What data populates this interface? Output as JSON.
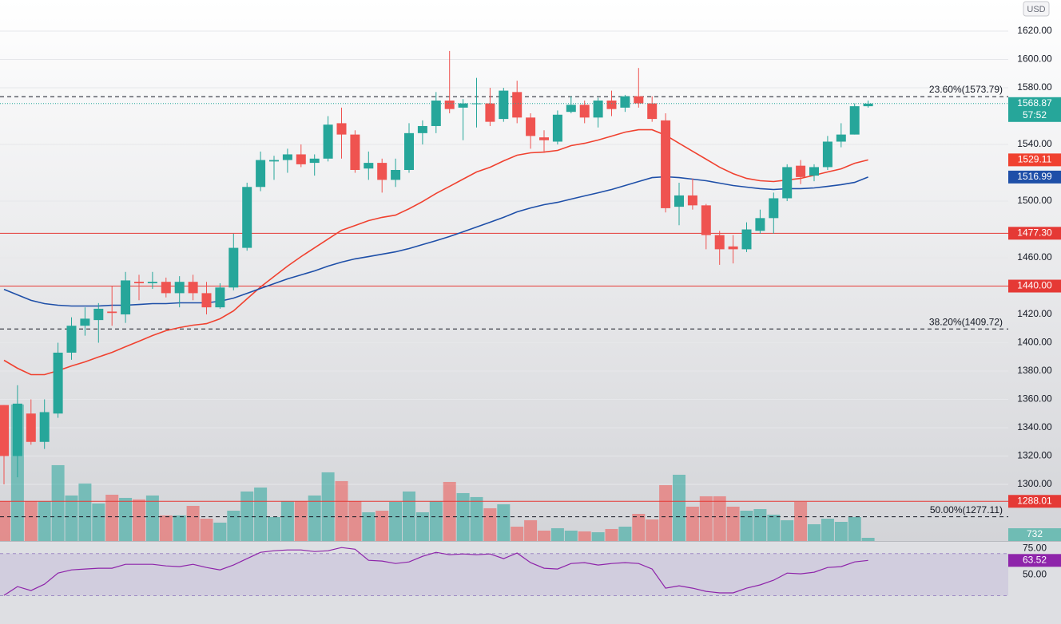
{
  "chart_data": {
    "type": "candlestick",
    "currency": "USD",
    "ylim": [
      1260,
      1642
    ],
    "yticks": [
      {
        "value": 1300,
        "label": "1300.00"
      },
      {
        "value": 1320,
        "label": "1320.00"
      },
      {
        "value": 1340,
        "label": "1340.00"
      },
      {
        "value": 1360,
        "label": "1360.00"
      },
      {
        "value": 1380,
        "label": "1380.00"
      },
      {
        "value": 1400,
        "label": "1400.00"
      },
      {
        "value": 1420,
        "label": "1420.00"
      },
      {
        "value": 1460,
        "label": "1460.00"
      },
      {
        "value": 1500,
        "label": "1500.00"
      },
      {
        "value": 1540,
        "label": "1540.00"
      },
      {
        "value": 1580,
        "label": "1580.00"
      },
      {
        "value": 1600,
        "label": "1600.00"
      },
      {
        "value": 1620,
        "label": "1620.00"
      }
    ],
    "grid": true,
    "up_color": "#26a69a",
    "down_color": "#ef5350",
    "candles": {
      "open": [
        1356,
        1320,
        1350,
        1330,
        1350,
        1393,
        1412,
        1416,
        1422,
        1420,
        1443,
        1442,
        1443,
        1435,
        1443,
        1435,
        1425,
        1439,
        1467,
        1510,
        1528,
        1529,
        1533,
        1527,
        1530,
        1555,
        1547,
        1523,
        1527,
        1515,
        1522,
        1548,
        1553,
        1571,
        1566,
        1569,
        1569,
        1558,
        1577,
        1559,
        1545,
        1542,
        1563,
        1568,
        1559,
        1571,
        1566,
        1574,
        1569,
        1557,
        1496,
        1504,
        1497,
        1476,
        1468,
        1466,
        1479,
        1488,
        1502,
        1525,
        1518,
        1524,
        1542,
        1547,
        1567
      ],
      "high": [
        1356,
        1370,
        1360,
        1360,
        1400,
        1418,
        1425,
        1428,
        1440,
        1450,
        1448,
        1450,
        1446,
        1447,
        1448,
        1443,
        1442,
        1477,
        1513,
        1535,
        1532,
        1537,
        1540,
        1533,
        1560,
        1566,
        1550,
        1535,
        1530,
        1530,
        1555,
        1557,
        1577,
        1606,
        1572,
        1587,
        1580,
        1580,
        1585,
        1562,
        1550,
        1564,
        1574,
        1571,
        1573,
        1578,
        1575,
        1594,
        1574,
        1562,
        1513,
        1516,
        1498,
        1479,
        1476,
        1485,
        1494,
        1506,
        1526,
        1529,
        1526,
        1546,
        1555,
        1569,
        1571
      ],
      "low": [
        1300,
        1305,
        1328,
        1325,
        1347,
        1388,
        1405,
        1400,
        1412,
        1414,
        1430,
        1438,
        1432,
        1425,
        1430,
        1420,
        1424,
        1437,
        1465,
        1507,
        1515,
        1520,
        1524,
        1518,
        1528,
        1530,
        1520,
        1515,
        1506,
        1510,
        1520,
        1540,
        1548,
        1562,
        1543,
        1552,
        1553,
        1556,
        1555,
        1537,
        1534,
        1540,
        1562,
        1555,
        1552,
        1560,
        1563,
        1566,
        1556,
        1492,
        1483,
        1494,
        1466,
        1455,
        1456,
        1464,
        1477,
        1477,
        1500,
        1512,
        1514,
        1522,
        1538,
        1547,
        1566
      ],
      "close": [
        1320,
        1357,
        1330,
        1351,
        1393,
        1412,
        1417,
        1424,
        1421,
        1444,
        1442,
        1443,
        1435,
        1443,
        1435,
        1425,
        1439,
        1467,
        1510,
        1529,
        1529,
        1533,
        1526,
        1530,
        1554,
        1547,
        1522,
        1527,
        1515,
        1522,
        1548,
        1553,
        1571,
        1565,
        1569,
        1569,
        1556,
        1578,
        1559,
        1546,
        1543,
        1561,
        1568,
        1559,
        1571,
        1565,
        1574,
        1569,
        1558,
        1495,
        1504,
        1497,
        1476,
        1466,
        1466,
        1480,
        1488,
        1502,
        1524,
        1517,
        1524,
        1542,
        1547,
        1567,
        1568.87
      ]
    },
    "countdown": "57:52",
    "moving_averages": [
      {
        "color": "#f0412f",
        "values": [
          1387.6,
          1382.0,
          1377.5,
          1377.5,
          1380.3,
          1383.6,
          1386.5,
          1389.9,
          1393.2,
          1397.2,
          1401.1,
          1405.1,
          1408.5,
          1410.7,
          1412.4,
          1413.5,
          1416.9,
          1422.5,
          1431.0,
          1439.4,
          1446.8,
          1454.1,
          1460.8,
          1467.0,
          1473.2,
          1479.4,
          1482.8,
          1486.2,
          1488.5,
          1490.1,
          1494.6,
          1499.7,
          1505.4,
          1510.4,
          1515.5,
          1520.6,
          1523.9,
          1528.4,
          1532.4,
          1534.1,
          1534.6,
          1535.8,
          1539.2,
          1540.8,
          1543.1,
          1545.9,
          1548.7,
          1550.4,
          1550.4,
          1546.5,
          1540.8,
          1535.2,
          1529.6,
          1523.9,
          1519.4,
          1516.0,
          1514.4,
          1513.8,
          1514.9,
          1516.0,
          1518.3,
          1520.6,
          1522.8,
          1526.7,
          1529.11
        ]
      },
      {
        "color": "#1e4fa8",
        "values": [
          1437.7,
          1433.8,
          1429.9,
          1427.6,
          1426.5,
          1425.9,
          1425.9,
          1425.9,
          1426.5,
          1426.5,
          1427.0,
          1427.6,
          1427.6,
          1428.2,
          1428.2,
          1428.2,
          1429.3,
          1431.5,
          1434.9,
          1438.3,
          1441.7,
          1445.1,
          1447.9,
          1450.7,
          1454.1,
          1456.9,
          1459.2,
          1460.8,
          1462.5,
          1464.2,
          1466.5,
          1469.3,
          1472.1,
          1475.0,
          1478.3,
          1481.7,
          1485.1,
          1488.5,
          1492.4,
          1495.2,
          1497.5,
          1499.1,
          1501.4,
          1503.7,
          1505.9,
          1508.2,
          1511.0,
          1513.8,
          1516.6,
          1517.2,
          1516.6,
          1515.5,
          1514.4,
          1512.7,
          1511.0,
          1509.9,
          1508.8,
          1508.2,
          1508.8,
          1508.8,
          1509.3,
          1510.4,
          1511.6,
          1513.2,
          1516.99
        ]
      }
    ],
    "horizontal_lines": {
      "color": "#e53935",
      "values": [
        1477.3,
        1440,
        1288.01
      ],
      "value_labels": [
        "1477.30",
        "1440.00",
        "1288.01"
      ]
    },
    "fib_levels": [
      {
        "value": 1573.79,
        "label": "23.60%(1573.79)"
      },
      {
        "value": 1409.72,
        "label": "38.20%(1409.72)"
      },
      {
        "value": 1277.11,
        "label": "50.00%(1277.11)"
      }
    ],
    "volume": {
      "ylim": [
        0,
        124000
      ],
      "values": [
        9150,
        31290,
        9150,
        9150,
        17385,
        10430,
        13180,
        8600,
        10610,
        9880,
        9520,
        10430,
        5860,
        5860,
        8050,
        5120,
        4210,
        6950,
        11350,
        12260,
        5490,
        9150,
        9150,
        10430,
        15740,
        13730,
        9150,
        6590,
        6950,
        8970,
        11350,
        6590,
        9150,
        13540,
        10980,
        10070,
        7500,
        8420,
        3290,
        4760,
        2380,
        2930,
        2380,
        2200,
        2010,
        2750,
        3290,
        6220,
        4940,
        12810,
        15190,
        7870,
        10250,
        10250,
        7870,
        6950,
        7320,
        6040,
        4760,
        8970,
        3840,
        5120,
        4390,
        5490,
        732
      ]
    },
    "rsi": {
      "color": "#8e24aa",
      "ylim": [
        3,
        82
      ],
      "band": [
        30,
        70
      ],
      "yticks": [
        {
          "value": 75,
          "label": "75.00"
        },
        {
          "value": 50,
          "label": "50.00"
        }
      ],
      "values": [
        30.3,
        38.6,
        34.8,
        40.9,
        51.5,
        54.5,
        55.3,
        56.1,
        56.1,
        59.8,
        59.8,
        59.8,
        58.3,
        57.6,
        59.8,
        56.8,
        54.5,
        59.1,
        65.2,
        71.2,
        72.7,
        73.5,
        73.5,
        72.0,
        72.7,
        75.8,
        74.2,
        63.6,
        62.9,
        60.6,
        62.1,
        67.4,
        71.2,
        68.9,
        69.7,
        68.9,
        69.7,
        65.2,
        70.5,
        61.4,
        56.1,
        55.3,
        60.6,
        61.4,
        59.1,
        60.6,
        61.4,
        60.6,
        55.3,
        37.1,
        39.4,
        37.1,
        34.1,
        32.6,
        32.6,
        37.1,
        40.2,
        44.7,
        51.5,
        50.8,
        52.3,
        56.8,
        57.6,
        62.1,
        63.52
      ]
    }
  }
}
